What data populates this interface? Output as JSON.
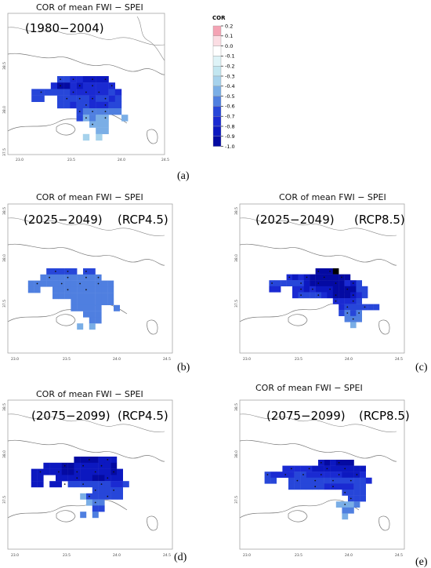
{
  "colorbar": {
    "title": "COR",
    "ticks": [
      "0.2",
      "0.1",
      "0.0",
      "-0.1",
      "-0.2",
      "-0.3",
      "-0.4",
      "-0.5",
      "-0.6",
      "-0.7",
      "-0.8",
      "-0.9",
      "-1.0"
    ],
    "colors": [
      "#f4a3b4",
      "#fbdde3",
      "#ffffff",
      "#def3f7",
      "#c2e6f0",
      "#a6d2ec",
      "#7aaee6",
      "#4f7fe0",
      "#2746d9",
      "#1a2ad2",
      "#0c18c0",
      "#040aa2"
    ]
  },
  "chart_data": [
    {
      "type": "heatmap",
      "panel": "a",
      "title": "COR of mean FWI − SPEI",
      "period": "(1980−2004)",
      "scenario": "",
      "x_ticks": [
        "23.0",
        "23.5",
        "24.0",
        "24.5"
      ],
      "y_ticks": [
        "38.5",
        "38.0",
        "37.5"
      ],
      "xlim": [
        23.0,
        24.5
      ],
      "ylim": [
        37.5,
        38.5
      ],
      "grid_origin": [
        23.0,
        38.0
      ],
      "cell_deg": [
        0.05,
        0.05
      ],
      "rows": [
        ".....55667777.........",
        "....6886766666........",
        ".55555566666656.......",
        ".55..5555565565.......",
        ".....5565566655.......",
        "........5444444.......",
        "........53433..3......",
        "..........333.........",
        "...........33.........",
        ".........2.2.........."
      ],
      "sig_rows": [
        ".....X.X..X.X.........",
        ".....X..X.X..X........",
        "..X....X.X.X..........",
        "......X.X.X.X.........",
        ".........X..X.........",
        "........X.X.X.........",
        ".........X..X.........",
        "..........X...........",
        "......................",
        "......................"
      ]
    },
    {
      "type": "heatmap",
      "panel": "b",
      "title": "COR of mean FWI − SPEI",
      "period": "(2025−2049)",
      "scenario": "(RCP4.5)",
      "x_ticks": [
        "23.0",
        "23.5",
        "24.0",
        "24.5"
      ],
      "y_ticks": [
        "38.5",
        "38.0",
        "37.5"
      ],
      "xlim": [
        23.0,
        24.5
      ],
      "ylim": [
        37.5,
        38.5
      ],
      "grid_origin": [
        23.0,
        38.0
      ],
      "cell_deg": [
        0.05,
        0.05
      ],
      "rows": [
        "....55555.55..........",
        "...4444444444.........",
        ".44444444444444.......",
        ".44..4444444444.......",
        ".....4444444444.......",
        "........4444444.......",
        "........44444..4......",
        "..........444.........",
        "...........44.........",
        ".........3.3.........."
      ],
      "sig_rows": [
        ".....X.X..X...........",
        "....X..X..X.X.........",
        "..X...X..X..X.........",
        ".......X..X...........",
        "......................",
        "......................",
        "......................",
        "......................",
        "......................",
        "......................"
      ]
    },
    {
      "type": "heatmap",
      "panel": "c",
      "title": "COR of mean FWI − SPEI",
      "period": "(2025−2049)",
      "scenario": "(RCP8.5)",
      "x_ticks": [
        "23.0",
        "23.5",
        "24.0",
        "24.5"
      ],
      "y_ticks": [
        "38.5",
        "38.0",
        "37.5"
      ],
      "xlim": [
        23.0,
        24.5
      ],
      "ylim": [
        37.5,
        38.5
      ],
      "grid_origin": [
        23.0,
        38.0
      ],
      "cell_deg": [
        0.05,
        0.05
      ],
      "rows": [
        ".........8889..........",
        "....67678888888........",
        ".5555557888888675......",
        ".66..6676777888855.....",
        ".....6555567888765.....",
        "............66665......",
        ".............6555555...",
        ".............5454......",
        "..............444......",
        "...............3......."
      ],
      "sig_rows": [
        ".........X.X...........",
        "....X..X..X..X.........",
        ".X....X..X..X..X.......",
        "......X.X..X..X........",
        "......X..X..X..X.......",
        "............X..X.......",
        "..............X..X.....",
        "..............X.X......",
        "...............X.......",
        "......................."
      ]
    },
    {
      "type": "heatmap",
      "panel": "d",
      "title": "COR of mean FWI − SPEI",
      "period": "(2075−2099)",
      "scenario": "(RCP4.5)",
      "x_ticks": [
        "23.0",
        "23.5",
        "24.0",
        "24.5"
      ],
      "y_ticks": [
        "38.5",
        "38.0",
        "37.5"
      ],
      "xlim": [
        23.0,
        24.5
      ],
      "ylim": [
        37.5,
        38.5
      ],
      "grid_origin": [
        23.0,
        38.0
      ],
      "cell_deg": [
        0.05,
        0.05
      ],
      "rows": [
        "........8888777.........",
        "...777887777778.........",
        ".777778877777787........",
        ".77..77777788777........",
        ".77.77.5555555665.......",
        "...........55555........",
        ".........3555555........",
        "..........344...........",
        "...........55...........",
        ".........4.4............"
      ],
      "sig_rows": [
        "..........X..X..........",
        "......X..X..X...........",
        "..X..X..X..X..X.........",
        "........X....X..........",
        "......X..X..X...........",
        "...........X..X.........",
        "..........X..X..........",
        "...........X............",
        "........................",
        "........................"
      ]
    },
    {
      "type": "heatmap",
      "panel": "e",
      "title": "COR of mean FWI − SPEI",
      "period": "(2075−2099)",
      "scenario": "(RCP8.5)",
      "x_ticks": [
        "23.0",
        "23.5",
        "24.0",
        "24.5"
      ],
      "y_ticks": [
        "38.5",
        "38.0",
        "37.5"
      ],
      "xlim": [
        23.0,
        24.5
      ],
      "ylim": [
        37.5,
        38.5
      ],
      "grid_origin": [
        23.0,
        38.0
      ],
      "cell_deg": [
        0.05,
        0.05
      ],
      "rows": [
        "..........787888........",
        "....66666777777777......",
        ".56666556666667776......",
        ".55..55555555555556.....",
        ".....5555556666655......",
        "..............5555......",
        "...............555......",
        ".............3334.......",
        "..............44........",
        "..............3........."
      ],
      "sig_rows": [
        "..........X..X..........",
        ".....X..X..X..X.........",
        ".X..X..X..X..X..X.......",
        "......X..X..X..X........",
        ".........X..X...........",
        "..............X.........",
        "...............X........",
        "..............X.........",
        "........................",
        "........................"
      ]
    }
  ],
  "panel_letters": [
    "(a)",
    "(b)",
    "(c)",
    "(d)",
    "(e)"
  ]
}
